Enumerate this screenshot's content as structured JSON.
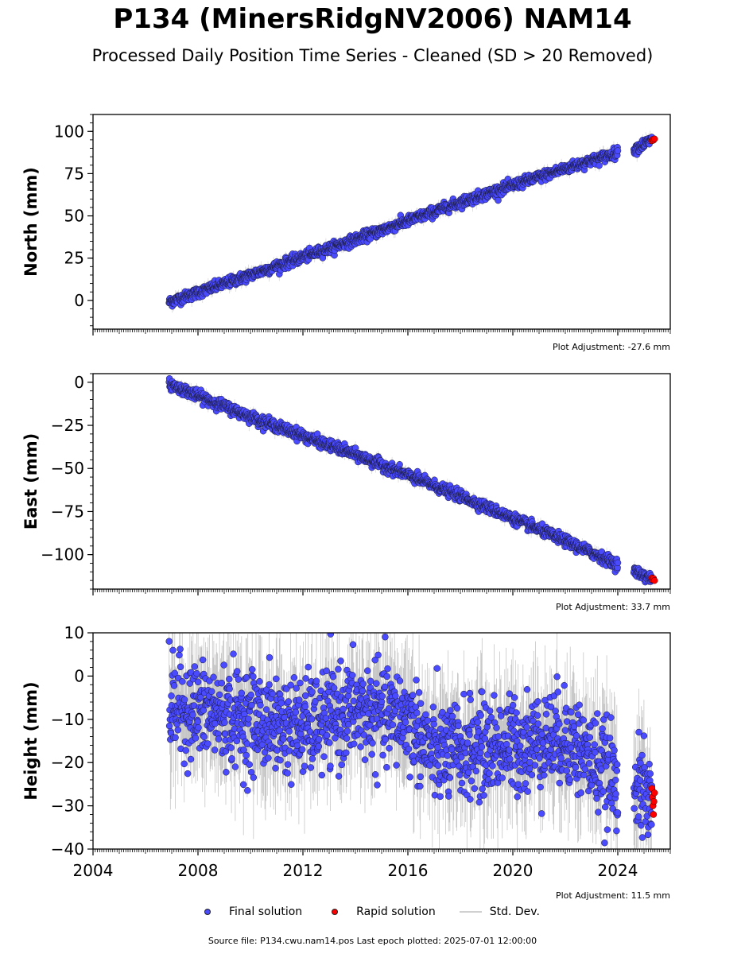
{
  "title": "P134 (MinersRidgNV2006) NAM14",
  "subtitle": "Processed Daily Position Time Series - Cleaned (SD > 20 Removed)",
  "legend": {
    "final": "Final solution",
    "rapid": "Rapid solution",
    "std": "Std. Dev."
  },
  "source": "Source file: P134.cwu.nam14.pos  Last epoch plotted: 2025-07-01 12:00:00",
  "colors": {
    "final": "#4a4aff",
    "rapid": "#ff0000",
    "std": "#b8b8b8"
  },
  "chart_data": [
    {
      "type": "scatter",
      "ylabel": "North (mm)",
      "xlim": [
        2004,
        2026
      ],
      "ylim": [
        -17,
        110
      ],
      "yticks": [
        0,
        25,
        50,
        75,
        100
      ],
      "xticks": [
        2004,
        2008,
        2012,
        2016,
        2020,
        2024
      ],
      "adjustment": "Plot Adjustment: -27.6 mm",
      "series": [
        {
          "name": "Final solution",
          "trend": [
            [
              2006.9,
              -1
            ],
            [
              2010,
              15
            ],
            [
              2014,
              36
            ],
            [
              2018,
              58
            ],
            [
              2022,
              78
            ],
            [
              2023.9,
              87
            ],
            [
              2024.7,
              90
            ],
            [
              2025.3,
              95
            ]
          ],
          "scatter": 1.5,
          "gap": [
            2024.0,
            2024.6
          ]
        },
        {
          "name": "Rapid solution",
          "points": [
            [
              2025.3,
              94.5
            ],
            [
              2025.33,
              95.2
            ],
            [
              2025.36,
              94.8
            ],
            [
              2025.4,
              95.5
            ]
          ]
        }
      ]
    },
    {
      "type": "scatter",
      "ylabel": "East (mm)",
      "xlim": [
        2004,
        2026
      ],
      "ylim": [
        -120,
        5
      ],
      "yticks": [
        0,
        -25,
        -50,
        -75,
        -100
      ],
      "yticklabels": [
        "0",
        "−25",
        "−50",
        "−75",
        "−100"
      ],
      "xticks": [
        2004,
        2008,
        2012,
        2016,
        2020,
        2024
      ],
      "adjustment": "Plot Adjustment: 33.7 mm",
      "series": [
        {
          "name": "Final solution",
          "trend": [
            [
              2006.9,
              -1
            ],
            [
              2010,
              -20
            ],
            [
              2014,
              -42
            ],
            [
              2018,
              -66
            ],
            [
              2022,
              -92
            ],
            [
              2023.9,
              -105
            ],
            [
              2024.7,
              -110
            ],
            [
              2025.3,
              -114
            ]
          ],
          "scatter": 1.5,
          "gap": [
            2024.0,
            2024.6
          ]
        },
        {
          "name": "Rapid solution",
          "points": [
            [
              2025.3,
              -113.5
            ],
            [
              2025.33,
              -114.5
            ],
            [
              2025.36,
              -113.8
            ],
            [
              2025.4,
              -115
            ]
          ]
        }
      ]
    },
    {
      "type": "scatter",
      "ylabel": "Height (mm)",
      "xlim": [
        2004,
        2026
      ],
      "ylim": [
        -40,
        10
      ],
      "yticks": [
        10,
        0,
        -10,
        -20,
        -30,
        -40
      ],
      "yticklabels": [
        "10",
        "0",
        "−10",
        "−20",
        "−30",
        "−40"
      ],
      "xticks": [
        2004,
        2008,
        2012,
        2016,
        2020,
        2024
      ],
      "xticklabels": [
        "2004",
        "2008",
        "2012",
        "2016",
        "2020",
        "2024"
      ],
      "adjustment": "Plot Adjustment: 11.5 mm",
      "series": [
        {
          "name": "Final solution",
          "trend": [
            [
              2006.9,
              -7
            ],
            [
              2010,
              -10
            ],
            [
              2012,
              -12
            ],
            [
              2014,
              -8
            ],
            [
              2016,
              -10
            ],
            [
              2017,
              -18
            ],
            [
              2020,
              -16
            ],
            [
              2022,
              -14
            ],
            [
              2023.9,
              -24
            ],
            [
              2024.7,
              -26
            ],
            [
              2025.3,
              -29
            ]
          ],
          "scatter": 5.5,
          "gap": [
            2024.0,
            2024.6
          ]
        },
        {
          "name": "Rapid solution",
          "points": [
            [
              2025.3,
              -26
            ],
            [
              2025.32,
              -28
            ],
            [
              2025.34,
              -30
            ],
            [
              2025.36,
              -32
            ],
            [
              2025.38,
              -29
            ],
            [
              2025.4,
              -27
            ]
          ]
        }
      ]
    }
  ]
}
